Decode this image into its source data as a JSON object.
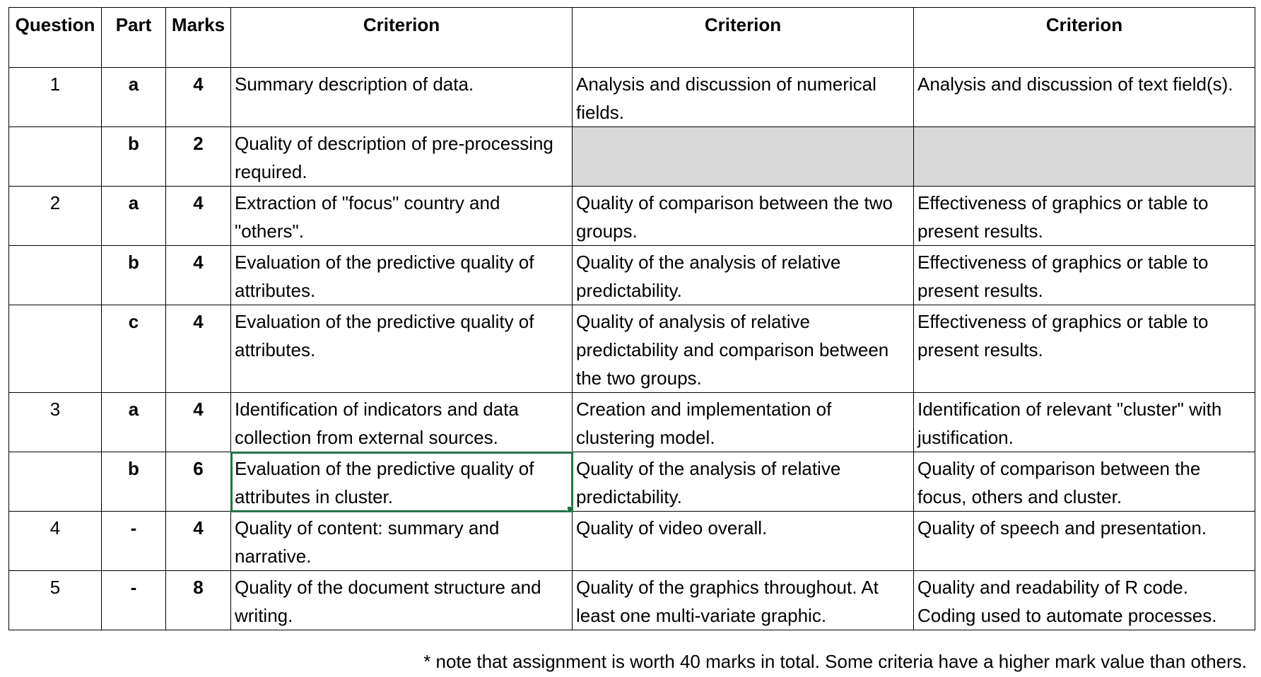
{
  "headers": {
    "question": "Question",
    "part": "Part",
    "marks": "Marks",
    "criterion1": "Criterion",
    "criterion2": "Criterion",
    "criterion3": "Criterion"
  },
  "rows": [
    {
      "question": "1",
      "part": "a",
      "marks": "4",
      "c1": "Summary description of data.",
      "c2": "Analysis and discussion of numerical fields.",
      "c3": "Analysis and discussion of text field(s)."
    },
    {
      "question": "",
      "part": "b",
      "marks": "2",
      "c1": "Quality of description of pre-processing required.",
      "c2": "",
      "c3": ""
    },
    {
      "question": "2",
      "part": "a",
      "marks": "4",
      "c1": "Extraction of \"focus\" country and \"others\".",
      "c2": "Quality of comparison between the two groups.",
      "c3": "Effectiveness of graphics or table to present results."
    },
    {
      "question": "",
      "part": "b",
      "marks": "4",
      "c1": "Evaluation of the predictive quality of attributes.",
      "c2": "Quality of the analysis of relative predictability.",
      "c3": "Effectiveness of graphics or table to present results."
    },
    {
      "question": "",
      "part": "c",
      "marks": "4",
      "c1": "Evaluation of the predictive quality of attributes.",
      "c2": "Quality of analysis of relative predictability and comparison between the two groups.",
      "c3": "Effectiveness of graphics or table to present results."
    },
    {
      "question": "3",
      "part": "a",
      "marks": "4",
      "c1": "Identification of indicators and data collection from external sources.",
      "c2": "Creation and implementation of clustering model.",
      "c3": "Identification of relevant \"cluster\" with justification."
    },
    {
      "question": "",
      "part": "b",
      "marks": "6",
      "c1": "Evaluation of the predictive quality of attributes in cluster.",
      "c2": "Quality of the analysis of relative predictability.",
      "c3": "Quality of comparison between the focus, others and cluster."
    },
    {
      "question": "4",
      "part": "-",
      "marks": "4",
      "c1": "Quality of content: summary and narrative.",
      "c2": "Quality of video overall.",
      "c3": "Quality of speech and presentation."
    },
    {
      "question": "5",
      "part": "-",
      "marks": "8",
      "c1": "Quality of the document structure and writing.",
      "c2": "Quality of the graphics throughout. At least one multi-variate graphic.",
      "c3": "Quality and readability of R code. Coding used to automate processes."
    }
  ],
  "footnote": "* note that assignment is worth 40 marks in total. Some criteria have a higher mark value than others.",
  "colors": {
    "shade": "#d9d9d9",
    "selection": "#217346"
  }
}
